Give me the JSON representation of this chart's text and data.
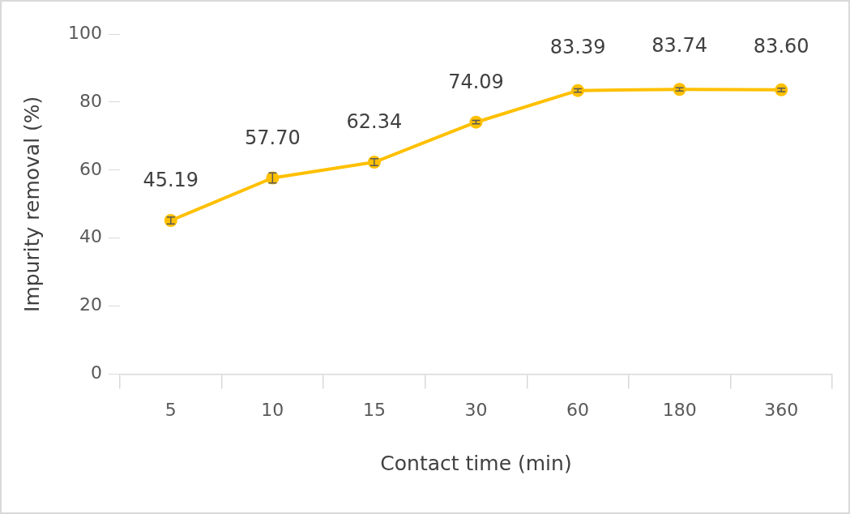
{
  "chart_data": {
    "type": "line",
    "xlabel": "Contact time (min)",
    "ylabel": "Impurity removal (%)",
    "categories": [
      "5",
      "10",
      "15",
      "30",
      "60",
      "180",
      "360"
    ],
    "series": [
      {
        "color": "#ffc000",
        "values": [
          45.19,
          57.7,
          62.34,
          74.09,
          83.39,
          83.74,
          83.6
        ],
        "value_labels": [
          "45.19",
          "57.70",
          "62.34",
          "74.09",
          "83.39",
          "83.74",
          "83.60"
        ],
        "errors": [
          1,
          1.5,
          1,
          0.5,
          0.5,
          0.5,
          0.5
        ]
      }
    ],
    "ylim": [
      0,
      100
    ],
    "yticks": [
      0,
      20,
      40,
      60,
      80,
      100
    ],
    "grid": false,
    "legend": false,
    "marker": "circle",
    "line_style": "solid"
  }
}
